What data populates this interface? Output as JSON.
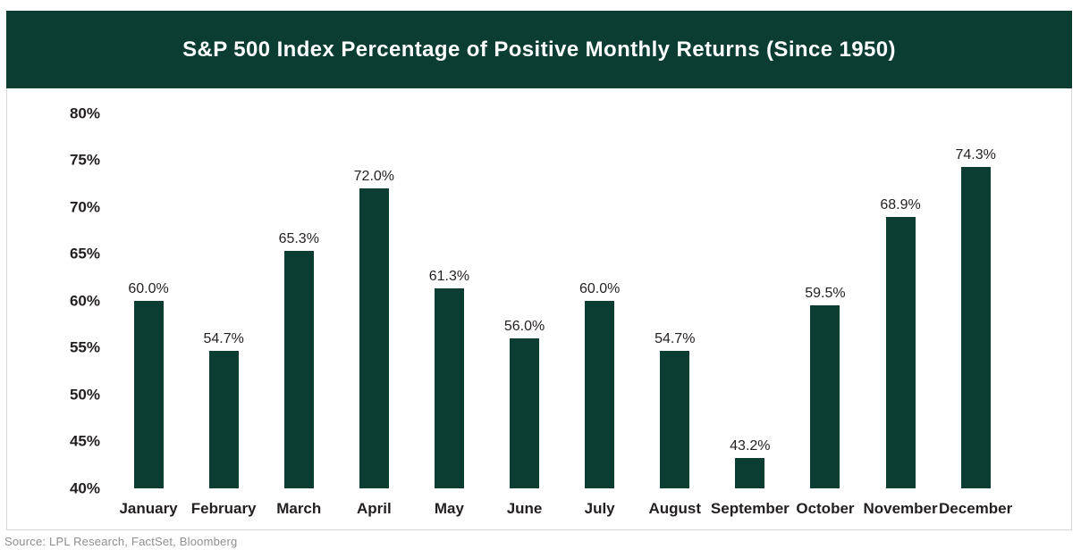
{
  "header": {
    "title": "S&P 500 Index Percentage of Positive Monthly Returns (Since 1950)"
  },
  "footer": {
    "source": "Source: LPL Research, FactSet, Bloomberg"
  },
  "colors": {
    "brand_green": "#0c3d33",
    "text_dark": "#231f20",
    "border_gray": "#d8d8d8",
    "source_gray": "#8f8f8f",
    "background": "#ffffff",
    "title_text": "#ffffff"
  },
  "chart_data": {
    "type": "bar",
    "title": "S&P 500 Index Percentage of Positive Monthly Returns (Since 1950)",
    "categories": [
      "January",
      "February",
      "March",
      "April",
      "May",
      "June",
      "July",
      "August",
      "September",
      "October",
      "November",
      "December"
    ],
    "values": [
      60.0,
      54.7,
      65.3,
      72.0,
      61.3,
      56.0,
      60.0,
      54.7,
      43.2,
      59.5,
      68.9,
      74.3
    ],
    "data_labels": [
      "60.0%",
      "54.7%",
      "65.3%",
      "72.0%",
      "61.3%",
      "56.0%",
      "60.0%",
      "54.7%",
      "43.2%",
      "59.5%",
      "68.9%",
      "74.3%"
    ],
    "xlabel": "",
    "ylabel": "",
    "ylim": [
      40,
      80
    ],
    "ytick_step": 5,
    "ytick_labels": [
      "80%",
      "75%",
      "70%",
      "65%",
      "60%",
      "55%",
      "50%",
      "45%",
      "40%"
    ],
    "grid": false,
    "legend_position": "none",
    "bar_color": "#0c3d33"
  }
}
